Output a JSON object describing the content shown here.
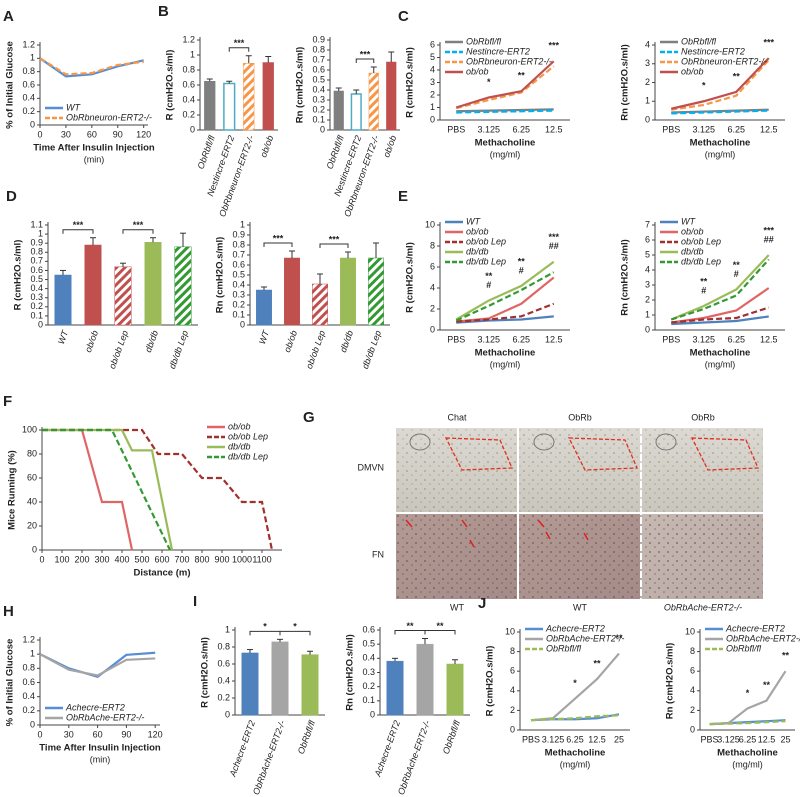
{
  "chart_data": [
    {
      "type": "line",
      "panel": "A",
      "ylabel": "% of Initial Glucose",
      "xlabel": "Time  After Insulin Injection",
      "xunit": "(min)",
      "x": [
        0,
        30,
        60,
        90,
        120
      ],
      "xlim": [
        0,
        125
      ],
      "xticks": [
        0,
        30,
        60,
        90,
        120
      ],
      "ylim": [
        0,
        1.2
      ],
      "yticks": [
        0,
        0.2,
        0.4,
        0.6,
        0.8,
        1,
        1.2
      ],
      "legend": "bottom-left",
      "series": [
        {
          "name": "WT",
          "color": "#558ed5",
          "dashed": false,
          "values": [
            1,
            0.73,
            0.76,
            0.88,
            0.97
          ]
        },
        {
          "name": "ObRbneuron-ERT2-/-",
          "color": "#f79646",
          "dashed": true,
          "values": [
            1,
            0.76,
            0.78,
            0.9,
            0.95
          ]
        }
      ]
    },
    {
      "type": "bar",
      "panel": "B",
      "ylabel": "R (cmH2O.s/ml)",
      "ylim": [
        0,
        1.2
      ],
      "yticks": [
        0,
        0.2,
        0.4,
        0.6,
        0.8,
        1,
        1.2
      ],
      "categories": [
        "ObRbfl/fl",
        "Nestincre-ERT2",
        "ObRbneuron-ERT2-/-",
        "ob/ob"
      ],
      "values": [
        0.65,
        0.62,
        0.89,
        0.9
      ],
      "errors": [
        0.03,
        0.03,
        0.1,
        0.08
      ],
      "colors": [
        "#7f7f7f",
        "#4bacc6",
        "#f79646",
        "#c0504d"
      ],
      "styles": [
        "solid",
        "outline",
        "hatch",
        "solid"
      ],
      "significance": [
        {
          "from": 1,
          "to": 2,
          "text": "***"
        }
      ]
    },
    {
      "type": "bar",
      "ylabel": "Rn (cmH2O.s/ml)",
      "ylim": [
        0,
        0.9
      ],
      "yticks": [
        0,
        0.1,
        0.2,
        0.3,
        0.4,
        0.5,
        0.6,
        0.7,
        0.8,
        0.9
      ],
      "categories": [
        "ObRbfl/fl",
        "Nestincre-ERT2",
        "ObRbneuron-ERT2-/-",
        "ob/ob"
      ],
      "values": [
        0.39,
        0.36,
        0.57,
        0.68
      ],
      "errors": [
        0.03,
        0.04,
        0.06,
        0.1
      ],
      "colors": [
        "#7f7f7f",
        "#4bacc6",
        "#f79646",
        "#c0504d"
      ],
      "styles": [
        "solid",
        "outline",
        "hatch",
        "solid"
      ],
      "significance": [
        {
          "from": 1,
          "to": 2,
          "text": "***"
        }
      ]
    },
    {
      "type": "line",
      "panel": "C",
      "ylabel": "R (cmH2O.s/ml)",
      "xlabel": "Methacholine",
      "xunit": "(mg/ml)",
      "categories": [
        "PBS",
        "3.125",
        "6.25",
        "12.5"
      ],
      "ylim": [
        0,
        6
      ],
      "yticks": [
        0,
        1,
        2,
        3,
        4,
        5,
        6
      ],
      "legend": "top-left",
      "series": [
        {
          "name": "ObRbfl/fl",
          "color": "#808080",
          "dashed": false,
          "values": [
            0.7,
            0.75,
            0.8,
            0.85
          ]
        },
        {
          "name": "Nestincre-ERT2",
          "color": "#00b0f0",
          "dashed": true,
          "values": [
            0.6,
            0.65,
            0.7,
            0.75
          ]
        },
        {
          "name": "ObRbneuron-ERT2-/-",
          "color": "#f79646",
          "dashed": true,
          "values": [
            0.95,
            1.6,
            2.2,
            4.3
          ]
        },
        {
          "name": "ob/ob",
          "color": "#c0504d",
          "dashed": false,
          "values": [
            1,
            1.8,
            2.3,
            4.7
          ]
        }
      ],
      "annotations": [
        {
          "index": 1,
          "text": "*"
        },
        {
          "index": 2,
          "text": "**"
        },
        {
          "index": 3,
          "text": "***"
        }
      ]
    },
    {
      "type": "line",
      "ylabel": "Rn (cmH2O.s/ml)",
      "xlabel": "Methacholine",
      "xunit": "(mg/ml)",
      "categories": [
        "PBS",
        "3.125",
        "6.25",
        "12.5"
      ],
      "ylim": [
        0,
        4
      ],
      "yticks": [
        0,
        1,
        2,
        3,
        4
      ],
      "legend": "top-left",
      "series": [
        {
          "name": "ObRbfl/fl",
          "color": "#808080",
          "dashed": false,
          "values": [
            0.4,
            0.45,
            0.5,
            0.55
          ]
        },
        {
          "name": "Nestincre-ERT2",
          "color": "#00b0f0",
          "dashed": true,
          "values": [
            0.35,
            0.4,
            0.45,
            0.5
          ]
        },
        {
          "name": "ObRbneuron-ERT2-/-",
          "color": "#f79646",
          "dashed": true,
          "values": [
            0.55,
            0.8,
            1.3,
            3.2
          ]
        },
        {
          "name": "ob/ob",
          "color": "#c0504d",
          "dashed": false,
          "values": [
            0.6,
            1,
            1.5,
            3.3
          ]
        }
      ],
      "annotations": [
        {
          "index": 1,
          "text": "*"
        },
        {
          "index": 2,
          "text": "**"
        },
        {
          "index": 3,
          "text": "***"
        }
      ]
    },
    {
      "type": "bar",
      "panel": "D",
      "ylabel": "R (cmH2O.s/ml)",
      "ylim": [
        0,
        1.1
      ],
      "yticks": [
        0,
        0.1,
        0.2,
        0.3,
        0.4,
        0.5,
        0.6,
        0.7,
        0.8,
        0.9,
        1,
        1.1
      ],
      "categories": [
        "WT",
        "ob/ob",
        "ob/ob Lep",
        "db/db",
        "db/db Lep"
      ],
      "values": [
        0.55,
        0.88,
        0.64,
        0.91,
        0.86
      ],
      "errors": [
        0.05,
        0.08,
        0.04,
        0.05,
        0.15
      ],
      "colors": [
        "#4f81bd",
        "#c0504d",
        "#c0504d",
        "#9bbb59",
        "#339933"
      ],
      "styles": [
        "solid",
        "solid",
        "hatch",
        "solid",
        "hatch"
      ],
      "significance": [
        {
          "from": 0,
          "to": 1,
          "text": "***"
        },
        {
          "from": 2,
          "to": 3,
          "text": "***"
        }
      ]
    },
    {
      "type": "bar",
      "ylabel": "Rn (cmH2O.s/ml)",
      "ylim": [
        0,
        1
      ],
      "yticks": [
        0,
        0.1,
        0.2,
        0.3,
        0.4,
        0.5,
        0.6,
        0.7,
        0.8,
        0.9,
        1
      ],
      "categories": [
        "WT",
        "ob/ob",
        "ob/ob Lep",
        "db/db",
        "db/db Lep"
      ],
      "values": [
        0.35,
        0.67,
        0.41,
        0.67,
        0.67
      ],
      "errors": [
        0.03,
        0.07,
        0.1,
        0.06,
        0.15
      ],
      "colors": [
        "#4f81bd",
        "#c0504d",
        "#c0504d",
        "#9bbb59",
        "#339933"
      ],
      "styles": [
        "solid",
        "solid",
        "hatch",
        "solid",
        "hatch"
      ],
      "significance": [
        {
          "from": 0,
          "to": 1,
          "text": "***"
        },
        {
          "from": 2,
          "to": 3,
          "text": "***"
        }
      ]
    },
    {
      "type": "line",
      "panel": "E",
      "ylabel": "R (cmH2O.s/ml)",
      "xlabel": "Methacholine",
      "xunit": "(mg/ml)",
      "categories": [
        "PBS",
        "3.125",
        "6.25",
        "12.5"
      ],
      "ylim": [
        0,
        10
      ],
      "yticks": [
        0,
        2,
        4,
        6,
        8,
        10
      ],
      "legend": "top-left",
      "series": [
        {
          "name": "WT",
          "color": "#4f81bd",
          "dashed": false,
          "values": [
            0.7,
            0.9,
            1,
            1.3
          ]
        },
        {
          "name": "ob/ob",
          "color": "#e06666",
          "dashed": false,
          "values": [
            0.8,
            1.1,
            2.5,
            5
          ]
        },
        {
          "name": "ob/ob Lep",
          "color": "#a0312d",
          "dashed": true,
          "values": [
            0.8,
            1,
            1.3,
            2.5
          ]
        },
        {
          "name": "db/db",
          "color": "#9bbb59",
          "dashed": false,
          "values": [
            1,
            2.8,
            4.2,
            6.5
          ]
        },
        {
          "name": "db/db Lep",
          "color": "#339933",
          "dashed": true,
          "values": [
            0.9,
            2.3,
            3.8,
            5.5
          ]
        }
      ],
      "annotations": [
        {
          "index": 1,
          "text": "#"
        },
        {
          "index": 1,
          "text": "**"
        },
        {
          "index": 2,
          "text": "#"
        },
        {
          "index": 2,
          "text": "**"
        },
        {
          "index": 3,
          "text": "##"
        },
        {
          "index": 3,
          "text": "***"
        }
      ]
    },
    {
      "type": "line",
      "ylabel": "Rn (cmH2O.s/ml)",
      "xlabel": "Methacholine",
      "xunit": "(mg/ml)",
      "categories": [
        "PBS",
        "3.125",
        "6.25",
        "12.5"
      ],
      "ylim": [
        0,
        7
      ],
      "yticks": [
        0,
        1,
        2,
        3,
        4,
        5,
        6,
        7
      ],
      "legend": "top-left",
      "series": [
        {
          "name": "WT",
          "color": "#4f81bd",
          "dashed": false,
          "values": [
            0.4,
            0.5,
            0.6,
            0.9
          ]
        },
        {
          "name": "ob/ob",
          "color": "#e06666",
          "dashed": false,
          "values": [
            0.5,
            0.8,
            1.3,
            2.8
          ]
        },
        {
          "name": "ob/ob Lep",
          "color": "#a0312d",
          "dashed": true,
          "values": [
            0.5,
            0.7,
            0.8,
            1.5
          ]
        },
        {
          "name": "db/db",
          "color": "#9bbb59",
          "dashed": false,
          "values": [
            0.7,
            1.6,
            2.7,
            5
          ]
        },
        {
          "name": "db/db Lep",
          "color": "#339933",
          "dashed": true,
          "values": [
            0.7,
            1.4,
            2.3,
            4.7
          ]
        }
      ],
      "annotations": [
        {
          "index": 1,
          "text": "#"
        },
        {
          "index": 1,
          "text": "**"
        },
        {
          "index": 2,
          "text": "#"
        },
        {
          "index": 2,
          "text": "**"
        },
        {
          "index": 3,
          "text": "##"
        },
        {
          "index": 3,
          "text": "***"
        }
      ]
    },
    {
      "type": "line",
      "panel": "F",
      "ylabel": "Mice Running (%)",
      "xlabel": "Distance (m)",
      "xlim": [
        0,
        1200
      ],
      "xticks": [
        0,
        100,
        200,
        300,
        400,
        500,
        600,
        700,
        800,
        900,
        1000,
        1100
      ],
      "ylim": [
        0,
        100
      ],
      "yticks": [
        0,
        20,
        40,
        60,
        80,
        100
      ],
      "legend": "top-right",
      "series": [
        {
          "name": "ob/ob",
          "color": "#e06666",
          "dashed": false,
          "x": [
            0,
            200,
            300,
            400,
            450
          ],
          "values": [
            100,
            100,
            40,
            40,
            0
          ]
        },
        {
          "name": "ob/ob Lep",
          "color": "#a0312d",
          "dashed": true,
          "x": [
            0,
            500,
            580,
            700,
            800,
            900,
            1000,
            1100,
            1150
          ],
          "values": [
            100,
            100,
            80,
            80,
            60,
            60,
            40,
            40,
            0
          ]
        },
        {
          "name": "db/db",
          "color": "#9bbb59",
          "dashed": false,
          "x": [
            0,
            400,
            450,
            550,
            650
          ],
          "values": [
            100,
            100,
            83,
            83,
            0
          ]
        },
        {
          "name": "db/db Lep",
          "color": "#339933",
          "dashed": true,
          "x": [
            0,
            350,
            640
          ],
          "values": [
            100,
            100,
            0
          ]
        }
      ]
    },
    {
      "type": "line",
      "panel": "H",
      "ylabel": "% of Initial Glucose",
      "xlabel": "Time After Insulin Injection",
      "xunit": "(min)",
      "x": [
        0,
        30,
        60,
        90,
        120
      ],
      "xlim": [
        0,
        125
      ],
      "xticks": [
        0,
        30,
        60,
        90,
        120
      ],
      "ylim": [
        0,
        1.2
      ],
      "yticks": [
        0,
        0.2,
        0.4,
        0.6,
        0.8,
        1,
        1.2
      ],
      "legend": "bottom-left",
      "series": [
        {
          "name": "Achecre-ERT2",
          "color": "#558ed5",
          "dashed": false,
          "values": [
            1,
            0.8,
            0.68,
            0.99,
            1.02
          ]
        },
        {
          "name": "ObRbAche-ERT2-/-",
          "color": "#a5a5a5",
          "dashed": false,
          "values": [
            1,
            0.78,
            0.7,
            0.92,
            0.94
          ]
        }
      ]
    },
    {
      "type": "bar",
      "panel": "I",
      "ylabel": "R (cmH2O.s/ml)",
      "ylim": [
        0,
        1
      ],
      "yticks": [
        0,
        0.2,
        0.4,
        0.6,
        0.8,
        1
      ],
      "categories": [
        "Achecre-ERT2",
        "ObRbAche-ERT2-/-",
        "ObRbfl/fl"
      ],
      "values": [
        0.73,
        0.86,
        0.71
      ],
      "errors": [
        0.04,
        0.03,
        0.04
      ],
      "colors": [
        "#4f81bd",
        "#a5a5a5",
        "#9bbb59"
      ],
      "styles": [
        "solid",
        "solid",
        "solid"
      ],
      "significance": [
        {
          "from": 0,
          "to": 1,
          "text": "*"
        },
        {
          "from": 1,
          "to": 2,
          "text": "*"
        }
      ]
    },
    {
      "type": "bar",
      "ylabel": "Rn (cmH2O.s/ml)",
      "ylim": [
        0,
        0.6
      ],
      "yticks": [
        0,
        0.1,
        0.2,
        0.3,
        0.4,
        0.5,
        0.6
      ],
      "categories": [
        "Achecre-ERT2",
        "ObRbAche-ERT2-/-",
        "ObRbfl/fl"
      ],
      "values": [
        0.38,
        0.5,
        0.36
      ],
      "errors": [
        0.02,
        0.04,
        0.03
      ],
      "colors": [
        "#4f81bd",
        "#a5a5a5",
        "#9bbb59"
      ],
      "styles": [
        "solid",
        "solid",
        "solid"
      ],
      "significance": [
        {
          "from": 0,
          "to": 1,
          "text": "**"
        },
        {
          "from": 1,
          "to": 2,
          "text": "**"
        }
      ]
    },
    {
      "type": "line",
      "panel": "J",
      "ylabel": "R (cmH2O.s/ml)",
      "xlabel": "Methacholine",
      "xunit": "(mg/ml)",
      "categories": [
        "PBS",
        "3.125",
        "6.25",
        "12.5",
        "25"
      ],
      "ylim": [
        0,
        10
      ],
      "yticks": [
        0,
        2,
        4,
        6,
        8,
        10
      ],
      "legend": "top-left",
      "series": [
        {
          "name": "Achecre-ERT2",
          "color": "#558ed5",
          "dashed": false,
          "values": [
            1,
            1.1,
            1.1,
            1.2,
            1.6
          ]
        },
        {
          "name": "ObRbAche-ERT2-/-",
          "color": "#a5a5a5",
          "dashed": false,
          "values": [
            1,
            1.2,
            3.2,
            5.2,
            7.8
          ]
        },
        {
          "name": "ObRbfl/fl",
          "color": "#9bbb59",
          "dashed": true,
          "values": [
            1,
            1.1,
            1.2,
            1.4,
            1.5
          ]
        }
      ],
      "annotations": [
        {
          "index": 2,
          "text": "*"
        },
        {
          "index": 3,
          "text": "**"
        },
        {
          "index": 4,
          "text": "**"
        }
      ]
    },
    {
      "type": "line",
      "ylabel": "Rn (cmH2O.s/ml)",
      "xlabel": "Methacholine",
      "xunit": "(mg/ml)",
      "categories": [
        "PBS",
        "3.125",
        "6.25",
        "12.5",
        "25"
      ],
      "ylim": [
        0,
        10
      ],
      "yticks": [
        0,
        2,
        4,
        6,
        8,
        10
      ],
      "legend": "top-left",
      "series": [
        {
          "name": "Achecre-ERT2",
          "color": "#558ed5",
          "dashed": false,
          "values": [
            0.6,
            0.7,
            0.8,
            0.9,
            1
          ]
        },
        {
          "name": "ObRbAche-ERT2-/-",
          "color": "#a5a5a5",
          "dashed": false,
          "values": [
            0.6,
            0.7,
            2.2,
            3,
            6
          ]
        },
        {
          "name": "ObRbfl/fl",
          "color": "#9bbb59",
          "dashed": true,
          "values": [
            0.6,
            0.65,
            0.7,
            0.8,
            0.9
          ]
        }
      ],
      "annotations": [
        {
          "index": 2,
          "text": "*"
        },
        {
          "index": 3,
          "text": "**"
        },
        {
          "index": 4,
          "text": "**"
        }
      ]
    }
  ],
  "image_panel": {
    "panel": "G",
    "columns": [
      "Chat",
      "ObRb",
      "ObRb"
    ],
    "rows": [
      "DMVN",
      "FN"
    ],
    "footers": [
      "WT",
      "WT",
      "ObRbAche-ERT2-/-"
    ]
  }
}
